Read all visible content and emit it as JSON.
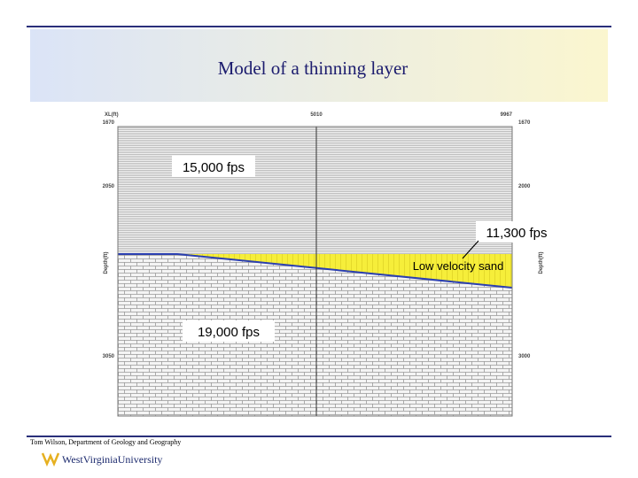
{
  "header": {
    "title": "Model of a thinning layer"
  },
  "model": {
    "top_labels": [
      "XL(ft)",
      "5010",
      "9967"
    ],
    "left_labels": [
      "1670",
      "2050",
      "3050"
    ],
    "right_labels": [
      "1670",
      "2000",
      "3000"
    ],
    "axis_label": "Depth(ft)",
    "layers": [
      {
        "label": "15,000 fps"
      },
      {
        "label": "11,300 fps",
        "name": "Low velocity sand"
      },
      {
        "label": "19,000 fps"
      }
    ]
  },
  "footer": {
    "credit": "Tom Wilson, Department of Geology and Geography",
    "logo": "WestVirginiaUniversity"
  }
}
